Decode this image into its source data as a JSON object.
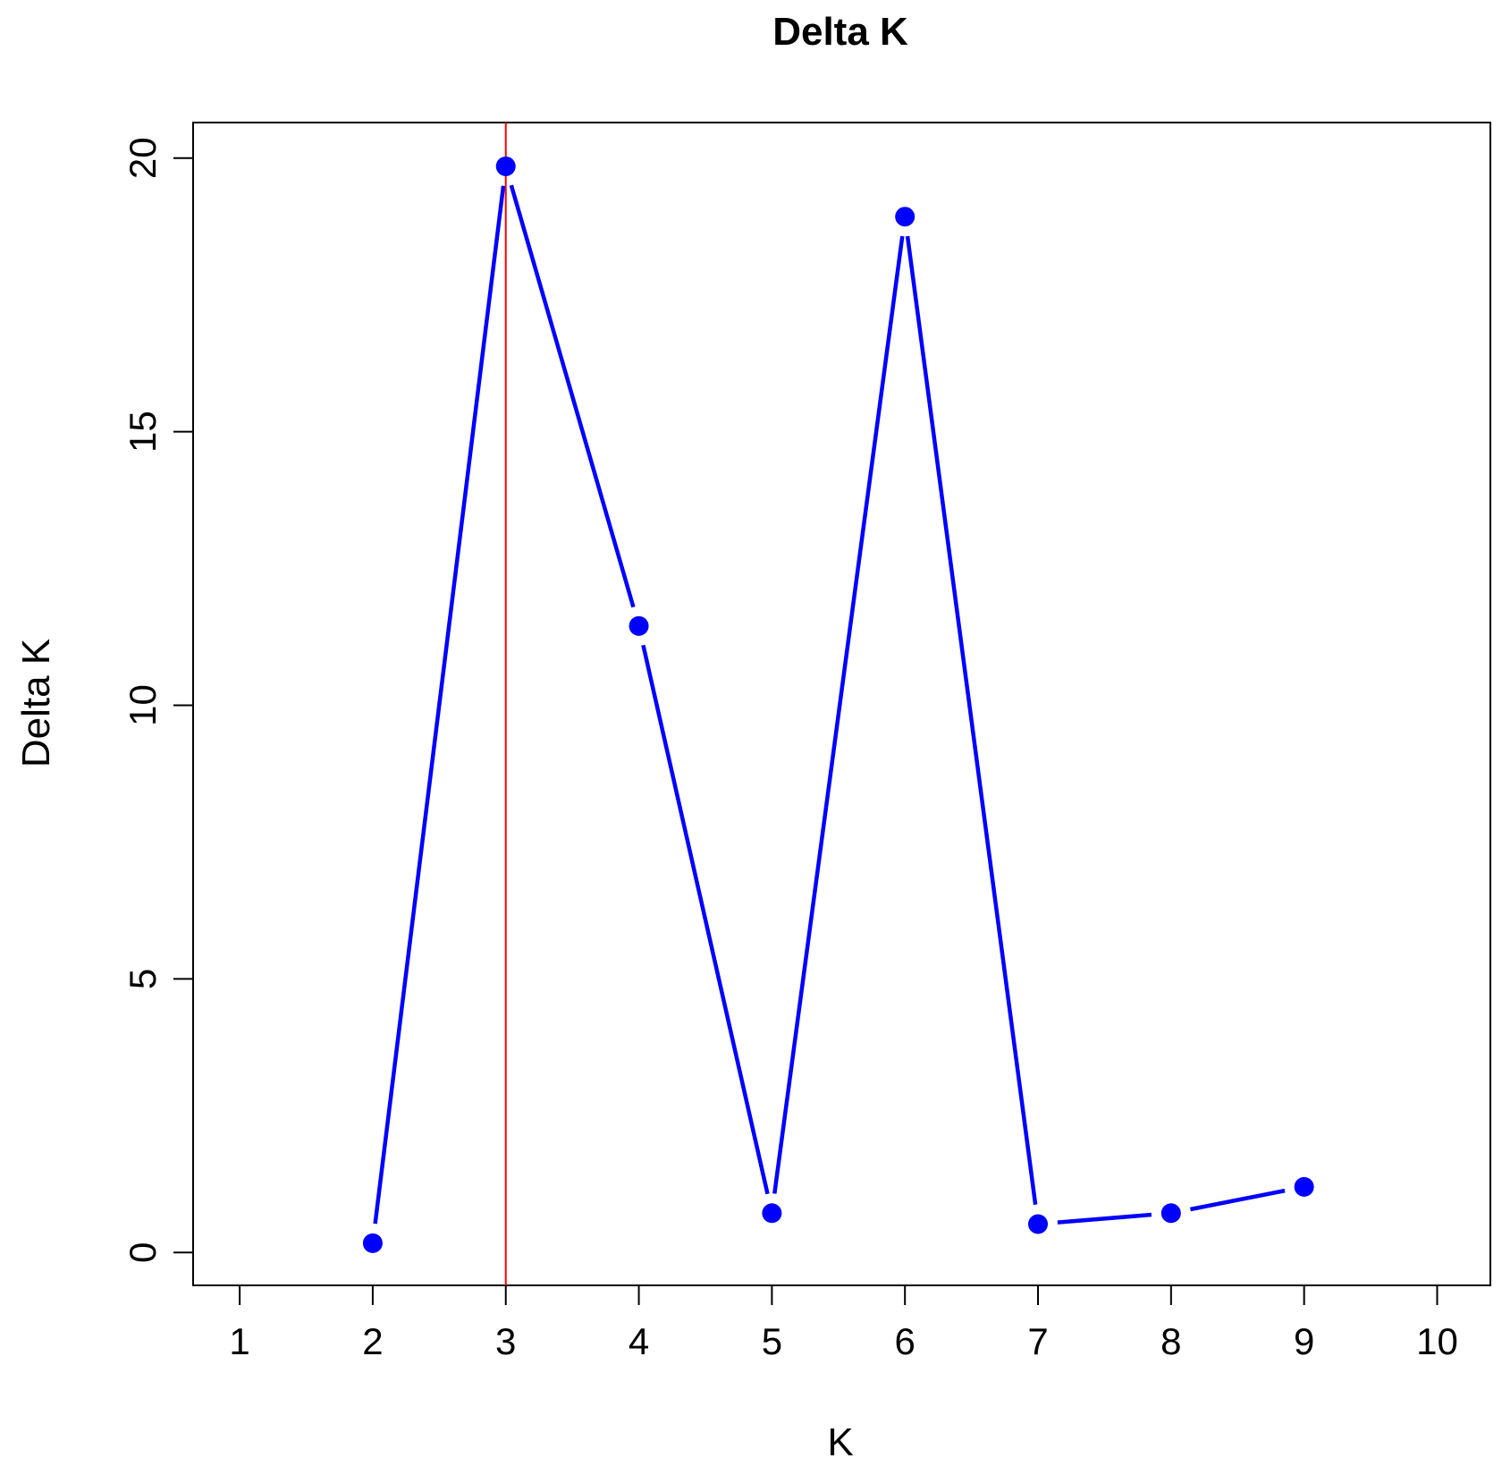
{
  "chart_data": {
    "type": "line",
    "title": "Delta K",
    "xlabel": "K",
    "ylabel": "Delta K",
    "x_ticks": [
      1,
      2,
      3,
      4,
      5,
      6,
      7,
      8,
      9,
      10
    ],
    "y_ticks": [
      0,
      5,
      10,
      15,
      20
    ],
    "xlim": [
      0.65,
      10.4
    ],
    "ylim": [
      -0.6,
      20.65
    ],
    "grid": false,
    "series": [
      {
        "x": [
          2,
          3,
          4,
          5,
          6,
          7,
          8,
          9
        ],
        "y": [
          0.17,
          19.85,
          11.45,
          0.72,
          18.93,
          0.52,
          0.72,
          1.2
        ],
        "color": "#0000ff"
      }
    ],
    "reference_line": {
      "x": 3,
      "color": "#ff0000"
    }
  }
}
